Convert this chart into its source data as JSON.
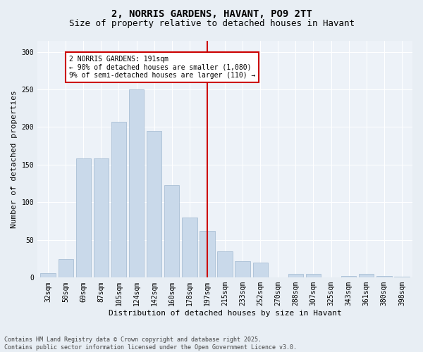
{
  "title_line1": "2, NORRIS GARDENS, HAVANT, PO9 2TT",
  "title_line2": "Size of property relative to detached houses in Havant",
  "xlabel": "Distribution of detached houses by size in Havant",
  "ylabel": "Number of detached properties",
  "footnote": "Contains HM Land Registry data © Crown copyright and database right 2025.\nContains public sector information licensed under the Open Government Licence v3.0.",
  "categories": [
    "32sqm",
    "50sqm",
    "69sqm",
    "87sqm",
    "105sqm",
    "124sqm",
    "142sqm",
    "160sqm",
    "178sqm",
    "197sqm",
    "215sqm",
    "233sqm",
    "252sqm",
    "270sqm",
    "288sqm",
    "307sqm",
    "325sqm",
    "343sqm",
    "361sqm",
    "380sqm",
    "398sqm"
  ],
  "values": [
    6,
    25,
    158,
    158,
    207,
    250,
    195,
    123,
    80,
    62,
    35,
    22,
    20,
    0,
    5,
    5,
    0,
    2,
    5,
    2,
    1
  ],
  "bar_color": "#c9d9ea",
  "bar_edgecolor": "#a0b8d0",
  "vline_x_index": 9,
  "vline_color": "#cc0000",
  "annotation_text": "2 NORRIS GARDENS: 191sqm\n← 90% of detached houses are smaller (1,080)\n9% of semi-detached houses are larger (110) →",
  "annotation_box_color": "#ffffff",
  "annotation_box_edgecolor": "#cc0000",
  "ylim": [
    0,
    315
  ],
  "yticks": [
    0,
    50,
    100,
    150,
    200,
    250,
    300
  ],
  "bg_color": "#e8eef4",
  "plot_bg_color": "#edf2f8",
  "grid_color": "#ffffff",
  "title_fontsize": 10,
  "subtitle_fontsize": 9,
  "axis_label_fontsize": 8,
  "tick_fontsize": 7,
  "annotation_fontsize": 7,
  "footnote_fontsize": 6
}
